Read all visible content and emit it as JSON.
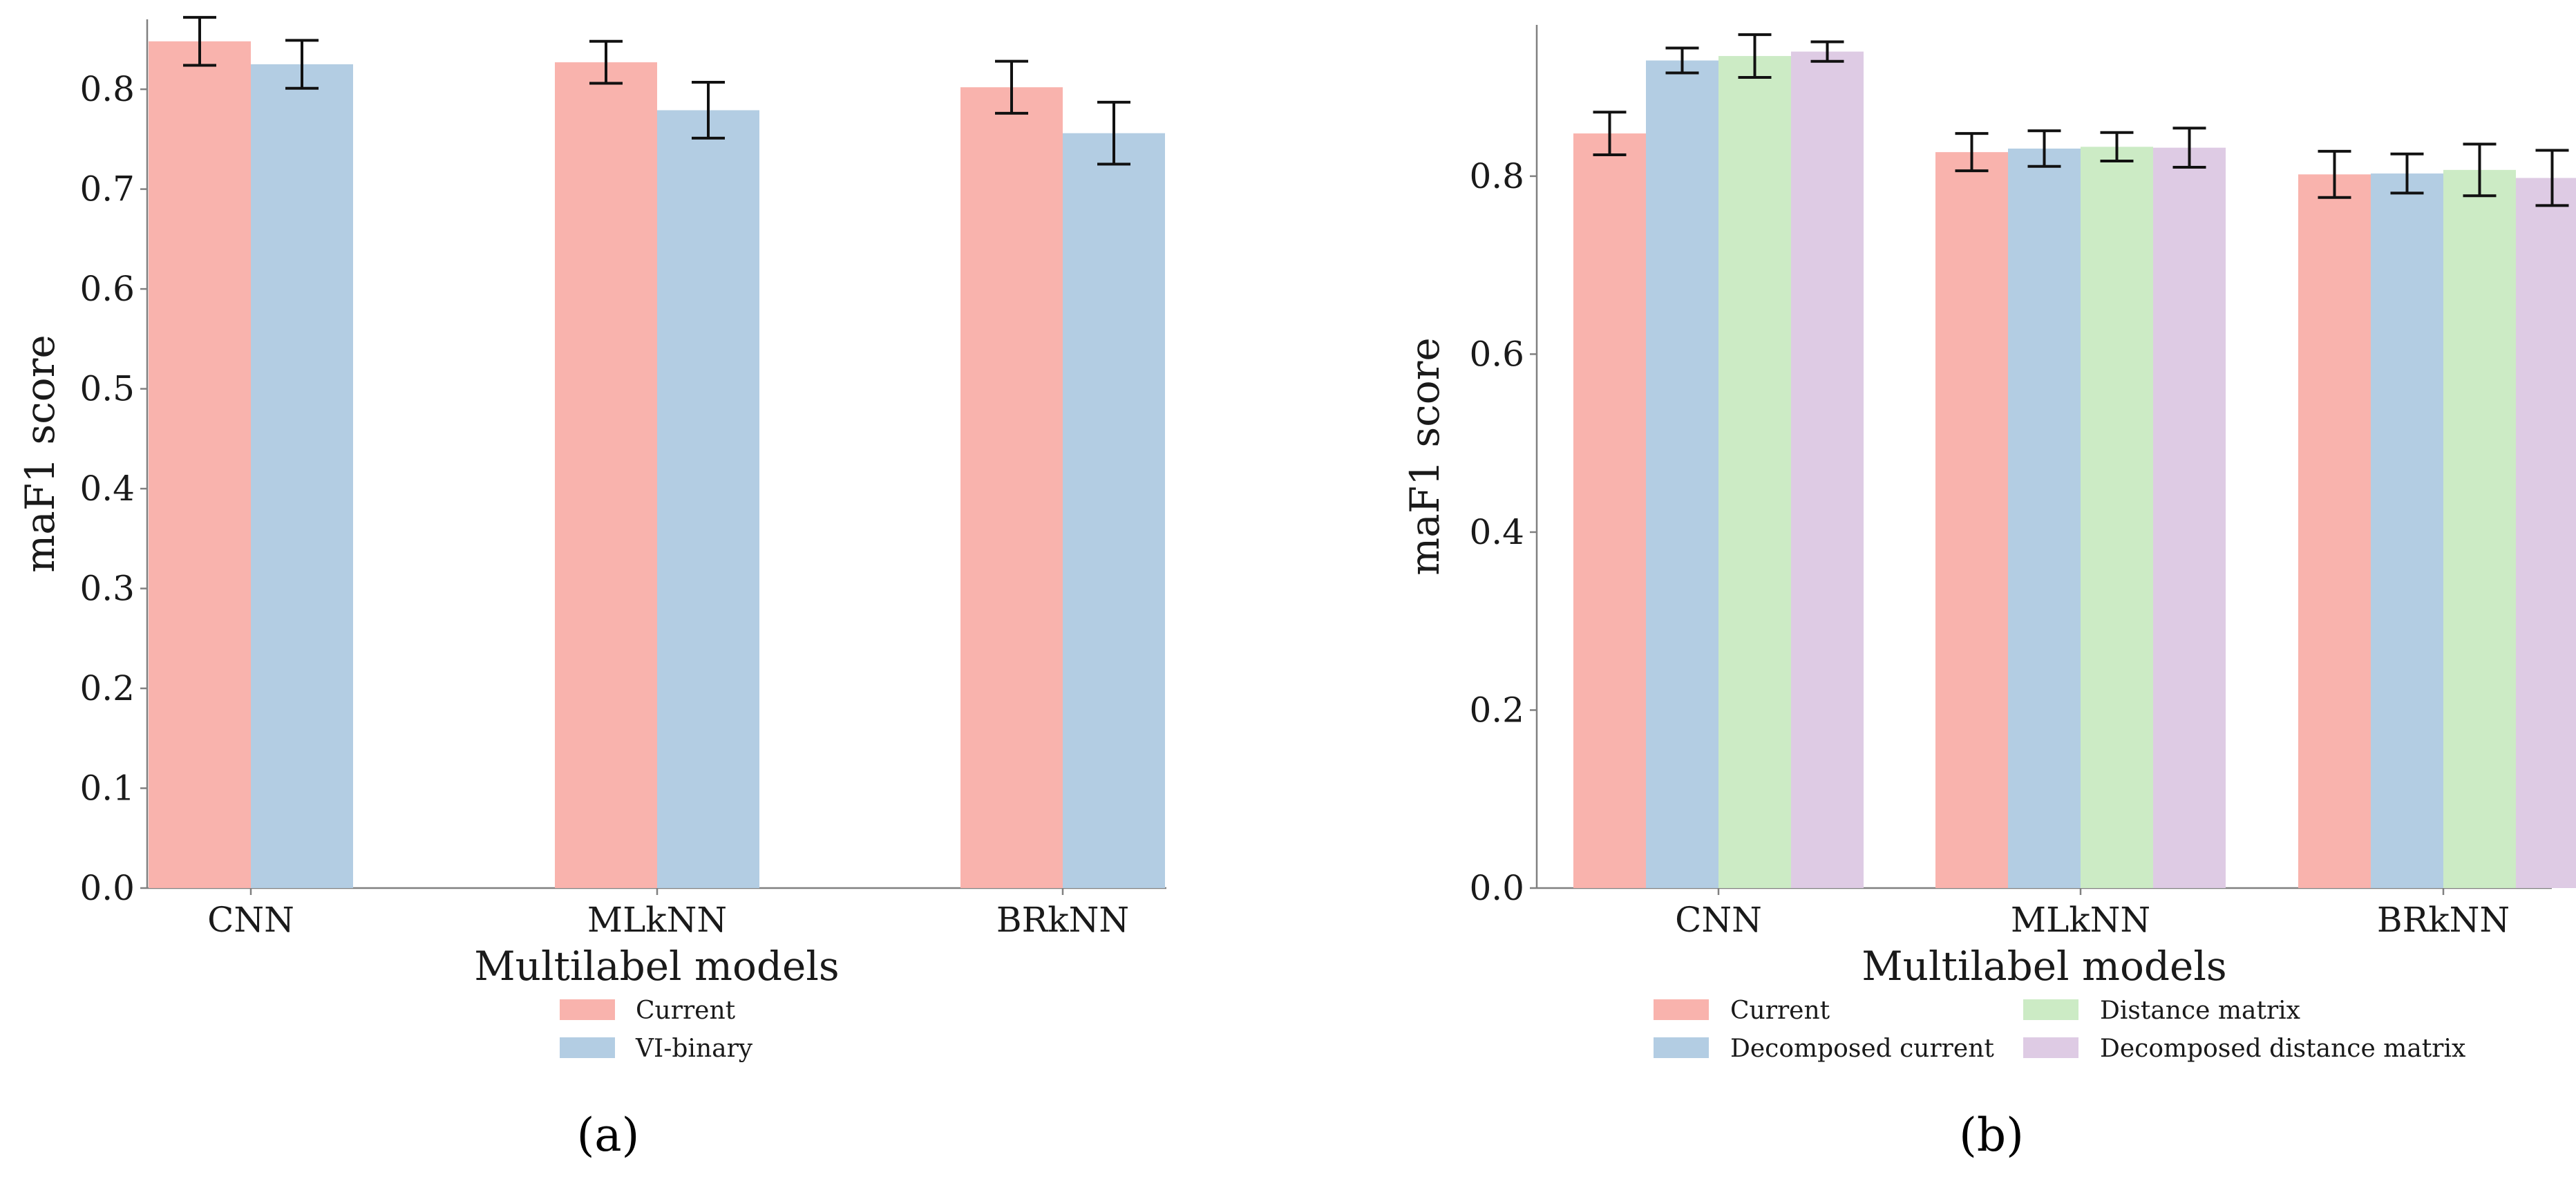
{
  "chart_data": [
    {
      "type": "bar",
      "panel_label": "(a)",
      "xlabel": "Multilabel models",
      "ylabel": "maF1 score",
      "ylim": [
        0,
        0.87
      ],
      "yticks": [
        "0.0",
        "0.1",
        "0.2",
        "0.3",
        "0.4",
        "0.5",
        "0.6",
        "0.7",
        "0.8"
      ],
      "categories": [
        "CNN",
        "MLkNN",
        "BRkNN"
      ],
      "legend_placement": "bottom-center",
      "series": [
        {
          "name": "Current",
          "color": "#f9b3ad",
          "values": [
            0.848,
            0.827,
            0.802
          ],
          "errors": [
            0.024,
            0.021,
            0.026
          ]
        },
        {
          "name": "VI-binary",
          "color": "#b3cde3",
          "values": [
            0.825,
            0.779,
            0.756
          ],
          "errors": [
            0.024,
            0.028,
            0.031
          ]
        }
      ]
    },
    {
      "type": "bar",
      "panel_label": "(b)",
      "xlabel": "Multilabel models",
      "ylabel": "maF1 score",
      "ylim": [
        0,
        0.97
      ],
      "yticks": [
        "0.0",
        "0.2",
        "0.4",
        "0.6",
        "0.8"
      ],
      "categories": [
        "CNN",
        "MLkNN",
        "BRkNN"
      ],
      "legend_placement": "bottom-center",
      "series": [
        {
          "name": "Current",
          "color": "#f9b3ad",
          "values": [
            0.848,
            0.827,
            0.802
          ],
          "errors": [
            0.024,
            0.021,
            0.026
          ]
        },
        {
          "name": "Decomposed current",
          "color": "#b3cde3",
          "values": [
            0.93,
            0.831,
            0.803
          ],
          "errors": [
            0.014,
            0.02,
            0.022
          ]
        },
        {
          "name": "Distance matrix",
          "color": "#ccebc5",
          "values": [
            0.935,
            0.833,
            0.807
          ],
          "errors": [
            0.024,
            0.016,
            0.029
          ]
        },
        {
          "name": "Decomposed distance matrix",
          "color": "#decbe4",
          "values": [
            0.94,
            0.832,
            0.798
          ],
          "errors": [
            0.011,
            0.022,
            0.031
          ]
        }
      ]
    }
  ]
}
